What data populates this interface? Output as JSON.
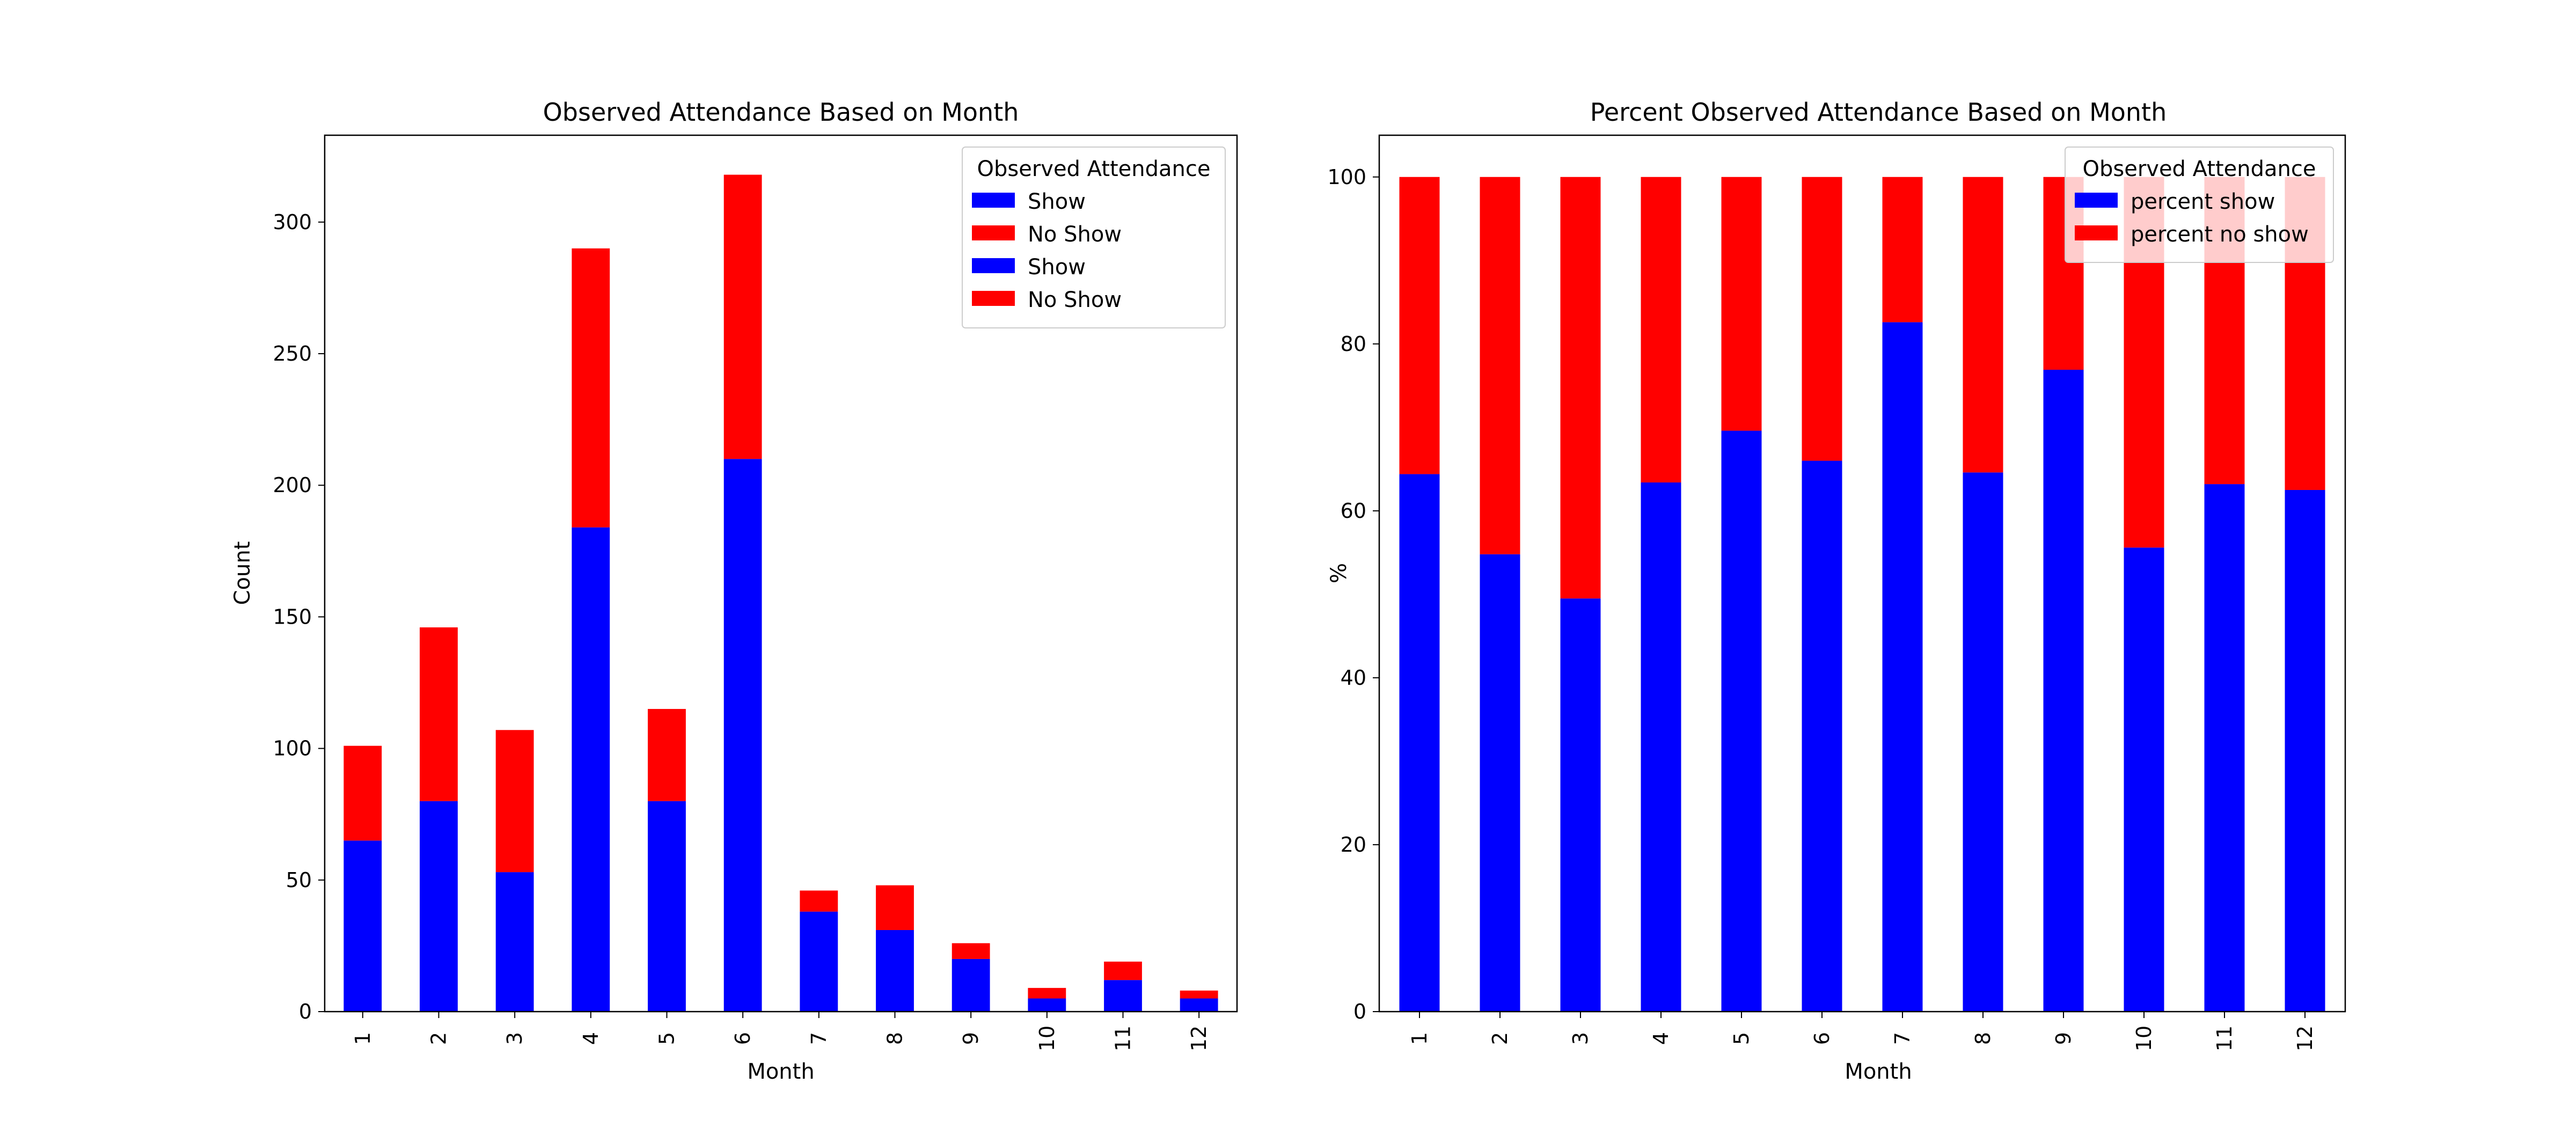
{
  "chart_data": [
    {
      "type": "bar",
      "stacked": true,
      "title": "Observed Attendance Based on Month",
      "xlabel": "Month",
      "ylabel": "Count",
      "categories": [
        "1",
        "2",
        "3",
        "4",
        "5",
        "6",
        "7",
        "8",
        "9",
        "10",
        "11",
        "12"
      ],
      "ylim": [
        0,
        333
      ],
      "yticks": [
        0,
        50,
        100,
        150,
        200,
        250,
        300
      ],
      "series": [
        {
          "name": "Show",
          "color": "#0000ff",
          "values": [
            65,
            80,
            53,
            184,
            80,
            210,
            38,
            31,
            20,
            5,
            12,
            5
          ]
        },
        {
          "name": "No Show",
          "color": "#ff0000",
          "values": [
            36,
            66,
            54,
            106,
            35,
            108,
            8,
            17,
            6,
            4,
            7,
            3
          ]
        }
      ],
      "legend": {
        "title": "Observed Attendance",
        "position": "upper right",
        "entries": [
          {
            "label": "Show",
            "color": "#0000ff"
          },
          {
            "label": "No Show",
            "color": "#ff0000"
          },
          {
            "label": "Show",
            "color": "#0000ff"
          },
          {
            "label": "No Show",
            "color": "#ff0000"
          }
        ]
      },
      "grid": false
    },
    {
      "type": "bar",
      "stacked": true,
      "title": "Percent Observed Attendance Based on Month",
      "xlabel": "Month",
      "ylabel": "%",
      "categories": [
        "1",
        "2",
        "3",
        "4",
        "5",
        "6",
        "7",
        "8",
        "9",
        "10",
        "11",
        "12"
      ],
      "ylim": [
        0,
        105
      ],
      "yticks": [
        0,
        20,
        40,
        60,
        80,
        100
      ],
      "series": [
        {
          "name": "percent show",
          "color": "#0000ff",
          "values": [
            64.4,
            54.8,
            49.5,
            63.4,
            69.6,
            66.0,
            82.6,
            64.6,
            76.9,
            55.6,
            63.2,
            62.5
          ]
        },
        {
          "name": "percent no show",
          "color": "#ff0000",
          "values": [
            35.6,
            45.2,
            50.5,
            36.6,
            30.4,
            34.0,
            17.4,
            35.4,
            23.1,
            44.4,
            36.8,
            37.5
          ]
        }
      ],
      "legend": {
        "title": "Observed Attendance",
        "position": "upper right",
        "entries": [
          {
            "label": "percent show",
            "color": "#0000ff"
          },
          {
            "label": "percent no show",
            "color": "#ff0000"
          }
        ]
      },
      "grid": false
    }
  ]
}
